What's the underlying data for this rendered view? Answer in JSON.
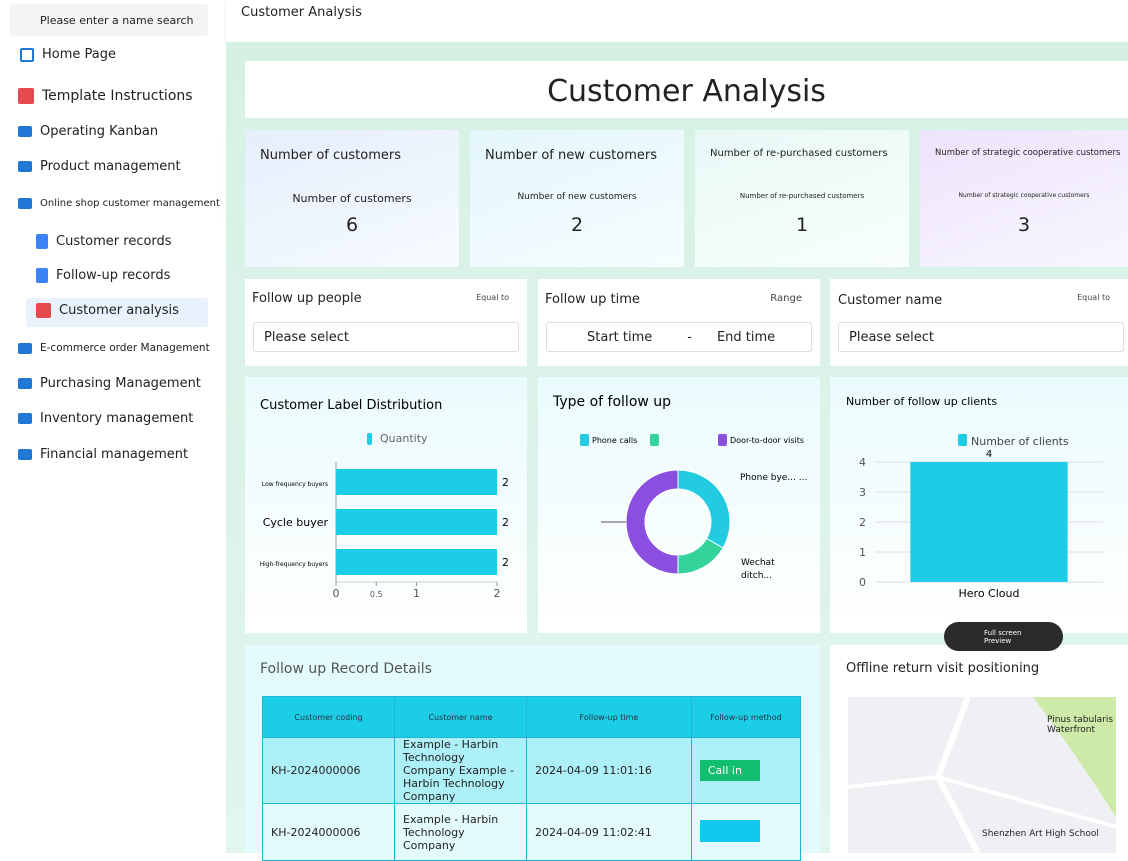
{
  "sidebar": {
    "search_placeholder": "Please enter a name search",
    "menu": [
      "Home Page",
      "Template Instructions",
      "Operating Kanban",
      "Product management",
      "Online shop customer management",
      "Customer records",
      "Follow-up records",
      "Customer analysis",
      "E-commerce order Management",
      "Purchasing Management",
      "Inventory management",
      "Financial management"
    ]
  },
  "header": {
    "title": "Customer Analysis"
  },
  "banner": {
    "title": "Customer Analysis"
  },
  "kpis": [
    {
      "title": "Number of customers",
      "label": "Number of customers",
      "value": 6
    },
    {
      "title": "Number of new customers",
      "label": "Number of new customers",
      "value": 2
    },
    {
      "title": "Number of re-purchased customers",
      "label": "Number of re-purchased customers",
      "value": 1
    },
    {
      "title": "Number of strategic cooperative customers",
      "label": "Number of strategic cooperative customers",
      "value": 3
    }
  ],
  "filters": [
    {
      "label": "Follow up people",
      "operator": "Equal to",
      "placeholder": "Please select"
    },
    {
      "label": "Follow up time",
      "operator": "Range",
      "start": "Start time",
      "separator": "-",
      "end": "End time"
    },
    {
      "label": "Customer name",
      "operator": "Equal to",
      "placeholder": "Please select"
    }
  ],
  "chart_data": [
    {
      "type": "hbar",
      "title": "Customer Label Distribution",
      "categories": [
        "Low frequency buyers",
        "Cycle buyer",
        "High-frequency buyers"
      ],
      "series": [
        {
          "name": "Quantity",
          "color": "#1ccde6",
          "values": [
            2,
            2,
            2
          ]
        }
      ],
      "xlim": [
        0,
        2
      ],
      "xticks": [
        0,
        0.5,
        1,
        2
      ]
    },
    {
      "type": "pie",
      "title": "Type of follow up",
      "categories": [
        "Phone calls",
        null,
        "Door-to-door visits"
      ],
      "colors": [
        "#22cbe0",
        "#34d399",
        "#8b4fe0"
      ],
      "values": [
        2,
        1,
        3
      ],
      "slice_labels": [
        "Phone bye... ...",
        "Wechat ditch...",
        null
      ]
    },
    {
      "type": "bar",
      "title": "Number of follow up clients",
      "categories": [
        "Hero Cloud"
      ],
      "series": [
        {
          "name": "Number of clients",
          "color": "#1ccde6",
          "values": [
            4
          ]
        }
      ],
      "ylim": [
        0,
        4
      ],
      "yticks": [
        0,
        1,
        2,
        3,
        4
      ]
    }
  ],
  "full_screen_button": "Full screen Preview",
  "table": {
    "title": "Follow up Record Details",
    "columns": [
      "Customer coding",
      "Customer name",
      "Follow-up time",
      "Follow-up method"
    ],
    "rows": [
      [
        "KH-2024000006",
        "Example - Harbin Technology Company Example - Harbin Technology Company",
        "2024-04-09 11:01:16",
        "Call in"
      ],
      [
        "KH-2024000006",
        "Example - Harbin Technology Company",
        "2024-04-09 11:02:41",
        null
      ]
    ]
  },
  "map": {
    "title": "Offline return visit positioning",
    "labels": [
      "Pinus tabularis Waterfront",
      "Shenzhen Art High School"
    ]
  }
}
